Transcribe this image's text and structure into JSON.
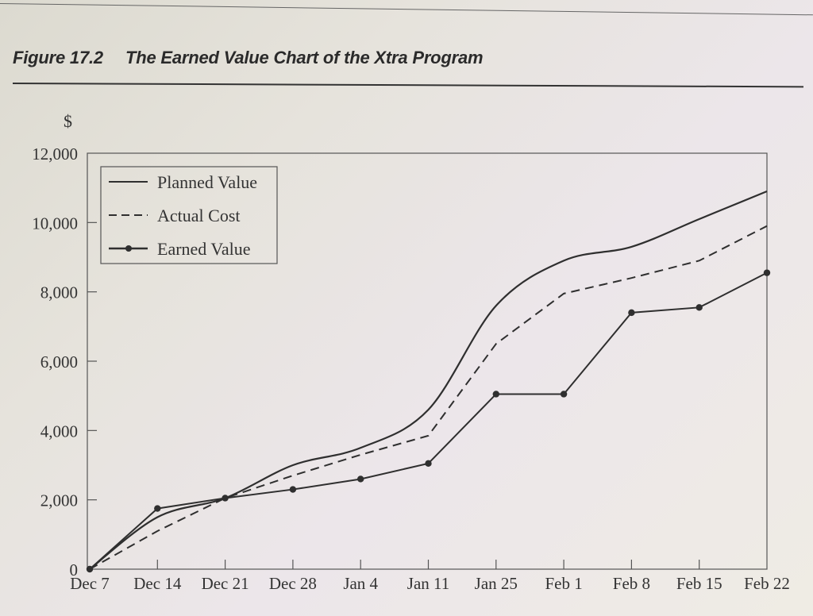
{
  "figure": {
    "number": "Figure 17.2",
    "title": "The Earned Value Chart of the Xtra Program"
  },
  "axes": {
    "y_unit": "$",
    "y_ticks": [
      "0",
      "2,000",
      "4,000",
      "6,000",
      "8,000",
      "10,000",
      "12,000"
    ],
    "x_ticks": [
      "Dec 7",
      "Dec 14",
      "Dec 21",
      "Dec 28",
      "Jan 4",
      "Jan 11",
      "Jan 25",
      "Feb 1",
      "Feb 8",
      "Feb 15",
      "Feb 22"
    ]
  },
  "legend": {
    "items": [
      {
        "label": "Planned Value",
        "style": "solid"
      },
      {
        "label": "Actual Cost",
        "style": "dashed"
      },
      {
        "label": "Earned Value",
        "style": "solid-markers"
      }
    ]
  },
  "colors": {
    "line": "#2f2f2f",
    "axis": "#555555"
  },
  "chart_data": {
    "type": "line",
    "title": "The Earned Value Chart of the Xtra Program",
    "xlabel": "",
    "ylabel": "$",
    "ylim": [
      0,
      12000
    ],
    "grid": false,
    "legend_position": "upper-left (inside)",
    "categories": [
      "Dec 7",
      "Dec 14",
      "Dec 21",
      "Dec 28",
      "Jan 4",
      "Jan 11",
      "Jan 25",
      "Feb 1",
      "Feb 8",
      "Feb 15",
      "Feb 22"
    ],
    "series": [
      {
        "name": "Planned Value",
        "style": "solid",
        "values": [
          0,
          1500,
          2050,
          3000,
          3500,
          4600,
          7600,
          8900,
          9300,
          10100,
          10900
        ]
      },
      {
        "name": "Actual Cost",
        "style": "dashed",
        "values": [
          0,
          1100,
          2050,
          2700,
          3300,
          3850,
          6500,
          7950,
          8400,
          8900,
          9900
        ]
      },
      {
        "name": "Earned Value",
        "style": "solid with markers",
        "values": [
          0,
          1750,
          2050,
          2300,
          2600,
          3050,
          5050,
          5050,
          7400,
          7550,
          8550
        ]
      }
    ]
  }
}
